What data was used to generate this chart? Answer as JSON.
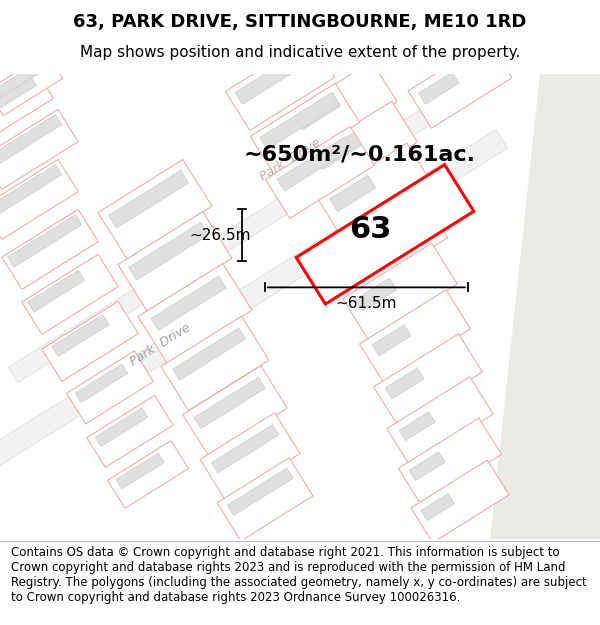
{
  "title": "63, PARK DRIVE, SITTINGBOURNE, ME10 1RD",
  "subtitle": "Map shows position and indicative extent of the property.",
  "footer": "Contains OS data © Crown copyright and database right 2021. This information is subject to Crown copyright and database rights 2023 and is reproduced with the permission of HM Land Registry. The polygons (including the associated geometry, namely x, y co-ordinates) are subject to Crown copyright and database rights 2023 Ordnance Survey 100026316.",
  "area_label": "~650m²/~0.161ac.",
  "width_label": "~61.5m",
  "height_label": "~26.5m",
  "property_number": "63",
  "map_bg": "#ffffff",
  "plot_fill": "#ffffff",
  "plot_border": "#f0a0a0",
  "building_fill": "#e0e0e0",
  "building_border": "#cccccc",
  "road_fill": "#f5f5f5",
  "road_border_color": "#d0d0d0",
  "right_bg": "#e8ece4",
  "property_border": "#ff0000",
  "road_label_color": "#c8a8a8",
  "dim_line_color": "#000000",
  "title_fontsize": 13,
  "subtitle_fontsize": 11,
  "footer_fontsize": 8.5,
  "area_fontsize": 16,
  "dim_fontsize": 11,
  "num_fontsize": 22
}
